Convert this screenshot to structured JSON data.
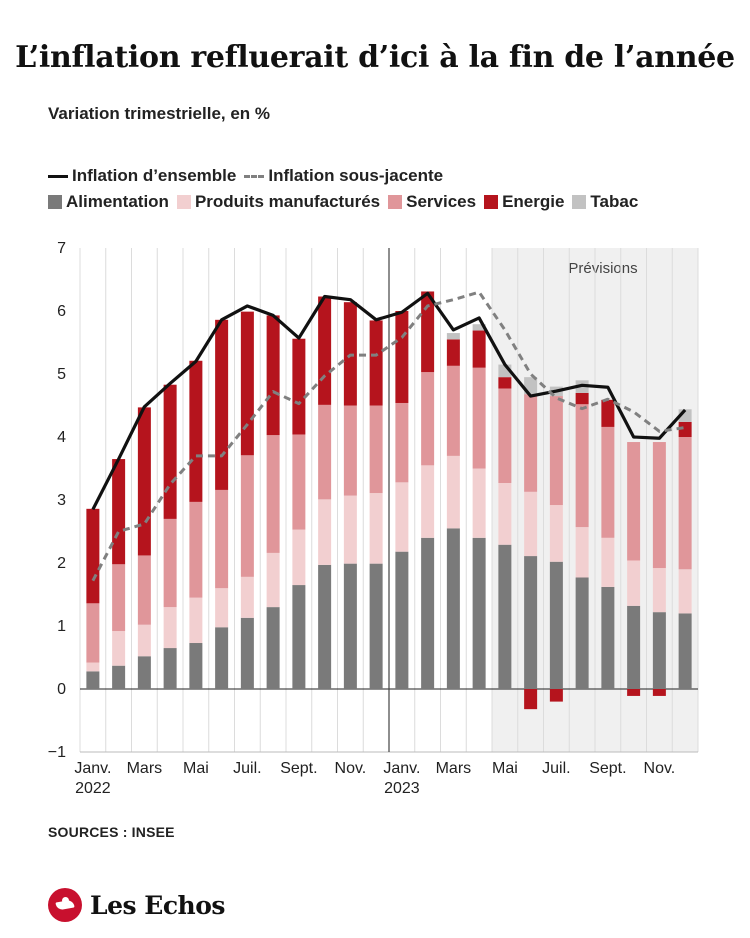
{
  "header": {
    "title": "L’inflation refluerait d’ici à la fin de l’année",
    "subtitle": "Variation trimestrielle, en %"
  },
  "legend": {
    "inflation_ensemble": "Inflation d’ensemble",
    "inflation_sous_jacente": "Inflation sous-jacente",
    "alimentation": "Alimentation",
    "produits_manufactures": "Produits manufacturés",
    "services": "Services",
    "energie": "Energie",
    "tabac": "Tabac"
  },
  "colors": {
    "alimentation": "#7a7a7a",
    "produits_manufactures": "#f2cfd0",
    "services": "#e0969a",
    "energie": "#b5141d",
    "tabac": "#c2c2c2",
    "inflation_ensemble": "#111111",
    "inflation_sous_jacente": "#808080",
    "forecast_bg": "#f0f0f0"
  },
  "footer": {
    "source": "SOURCES : INSEE",
    "brand": "Les Echos"
  },
  "chart_data": {
    "type": "bar",
    "stacked": true,
    "forecast_label": "Prévisions",
    "forecast_start_index": 16,
    "ylim": [
      -1,
      7
    ],
    "yticks": [
      -1,
      0,
      1,
      2,
      3,
      4,
      5,
      6,
      7
    ],
    "ytick_labels": [
      "−1",
      "0",
      "1",
      "2",
      "3",
      "4",
      "5",
      "6",
      "7"
    ],
    "categories": [
      "Janv. 2022",
      "Févr. 2022",
      "Mars 2022",
      "Avr. 2022",
      "Mai 2022",
      "Juin 2022",
      "Juil. 2022",
      "Août 2022",
      "Sept. 2022",
      "Oct. 2022",
      "Nov. 2022",
      "Déc. 2022",
      "Janv. 2023",
      "Févr. 2023",
      "Mars 2023",
      "Avr. 2023",
      "Mai 2023",
      "Juin 2023",
      "Juil. 2023",
      "Août 2023",
      "Sept. 2023",
      "Oct. 2023",
      "Nov. 2023",
      "Déc. 2023"
    ],
    "xtick_labels": [
      {
        "index": 0,
        "line1": "Janv.",
        "line2": "2022"
      },
      {
        "index": 2,
        "line1": "Mars",
        "line2": ""
      },
      {
        "index": 4,
        "line1": "Mai",
        "line2": ""
      },
      {
        "index": 6,
        "line1": "Juil.",
        "line2": ""
      },
      {
        "index": 8,
        "line1": "Sept.",
        "line2": ""
      },
      {
        "index": 10,
        "line1": "Nov.",
        "line2": ""
      },
      {
        "index": 12,
        "line1": "Janv.",
        "line2": "2023"
      },
      {
        "index": 14,
        "line1": "Mars",
        "line2": ""
      },
      {
        "index": 16,
        "line1": "Mai",
        "line2": ""
      },
      {
        "index": 18,
        "line1": "Juil.",
        "line2": ""
      },
      {
        "index": 20,
        "line1": "Sept.",
        "line2": ""
      },
      {
        "index": 22,
        "line1": "Nov.",
        "line2": ""
      }
    ],
    "year_divider_index": 12,
    "series": [
      {
        "name": "Alimentation",
        "key": "alimentation",
        "values": [
          0.28,
          0.37,
          0.52,
          0.65,
          0.73,
          0.98,
          1.13,
          1.3,
          1.65,
          1.97,
          1.99,
          1.99,
          2.18,
          2.4,
          2.55,
          2.4,
          2.29,
          2.11,
          2.02,
          1.77,
          1.62,
          1.32,
          1.22,
          1.2
        ]
      },
      {
        "name": "Produits manufacturés",
        "key": "produits_manufactures",
        "values": [
          0.14,
          0.55,
          0.5,
          0.65,
          0.72,
          0.62,
          0.65,
          0.86,
          0.88,
          1.04,
          1.08,
          1.12,
          1.1,
          1.15,
          1.15,
          1.1,
          0.98,
          1.02,
          0.9,
          0.8,
          0.78,
          0.72,
          0.7,
          0.7
        ]
      },
      {
        "name": "Services",
        "key": "services",
        "values": [
          0.94,
          1.06,
          1.1,
          1.4,
          1.52,
          1.56,
          1.93,
          1.87,
          1.51,
          1.5,
          1.43,
          1.39,
          1.26,
          1.48,
          1.43,
          1.6,
          1.5,
          1.55,
          1.73,
          1.95,
          1.76,
          1.88,
          2.0,
          2.1
        ]
      },
      {
        "name": "Energie",
        "key": "energie",
        "values": [
          1.5,
          1.67,
          2.35,
          2.13,
          2.24,
          2.7,
          2.28,
          1.9,
          1.52,
          1.72,
          1.64,
          1.35,
          1.46,
          1.28,
          0.42,
          0.59,
          0.18,
          -0.32,
          -0.2,
          0.18,
          0.43,
          -0.11,
          -0.11,
          0.24
        ]
      },
      {
        "name": "Tabac",
        "key": "tabac",
        "values": [
          0,
          0,
          0,
          0,
          0,
          0,
          0,
          0,
          0,
          0,
          0,
          0,
          0,
          0,
          0.1,
          0.1,
          0.2,
          0.27,
          0.15,
          0.2,
          0,
          0,
          0,
          0.2
        ]
      }
    ],
    "lines": [
      {
        "name": "Inflation d’ensemble",
        "key": "inflation_ensemble",
        "style": "solid",
        "values": [
          2.85,
          3.65,
          4.48,
          4.85,
          5.2,
          5.86,
          6.08,
          5.93,
          5.57,
          6.23,
          6.18,
          5.86,
          5.98,
          6.28,
          5.7,
          5.89,
          5.15,
          4.65,
          4.73,
          4.82,
          4.79,
          4.0,
          3.98,
          4.43
        ]
      },
      {
        "name": "Inflation sous-jacente",
        "key": "inflation_sous_jacente",
        "style": "dashed",
        "values": [
          1.72,
          2.5,
          2.62,
          3.25,
          3.7,
          3.7,
          4.2,
          4.72,
          4.53,
          4.97,
          5.3,
          5.3,
          5.58,
          6.08,
          6.18,
          6.3,
          5.7,
          5.0,
          4.62,
          4.45,
          4.6,
          4.4,
          4.09,
          4.15
        ]
      }
    ]
  }
}
